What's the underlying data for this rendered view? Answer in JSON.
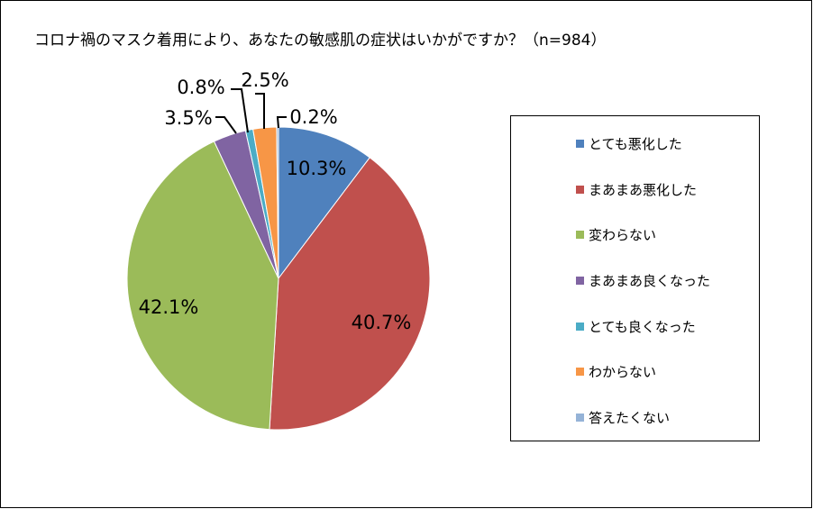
{
  "chart_data": {
    "type": "pie",
    "title": "コロナ禍のマスク着用により、あなたの敏感肌の症状はいかがですか？（n=984）",
    "slices": [
      {
        "label": "とても悪化した",
        "value": 10.3,
        "value_label": "10.3%",
        "color": "#4F81BD"
      },
      {
        "label": "まあまあ悪化した",
        "value": 40.7,
        "value_label": "40.7%",
        "color": "#C0504D"
      },
      {
        "label": "変わらない",
        "value": 42.1,
        "value_label": "42.1%",
        "color": "#9BBB59"
      },
      {
        "label": "まあまあ良くなった",
        "value": 3.5,
        "value_label": "3.5%",
        "color": "#8064A2"
      },
      {
        "label": "とても良くなった",
        "value": 0.8,
        "value_label": "0.8%",
        "color": "#4BACC6"
      },
      {
        "label": "わからない",
        "value": 2.5,
        "value_label": "2.5%",
        "color": "#F79646"
      },
      {
        "label": "答えたくない",
        "value": 0.2,
        "value_label": "0.2%",
        "color": "#95B3D7"
      }
    ],
    "legend_position": "right"
  }
}
